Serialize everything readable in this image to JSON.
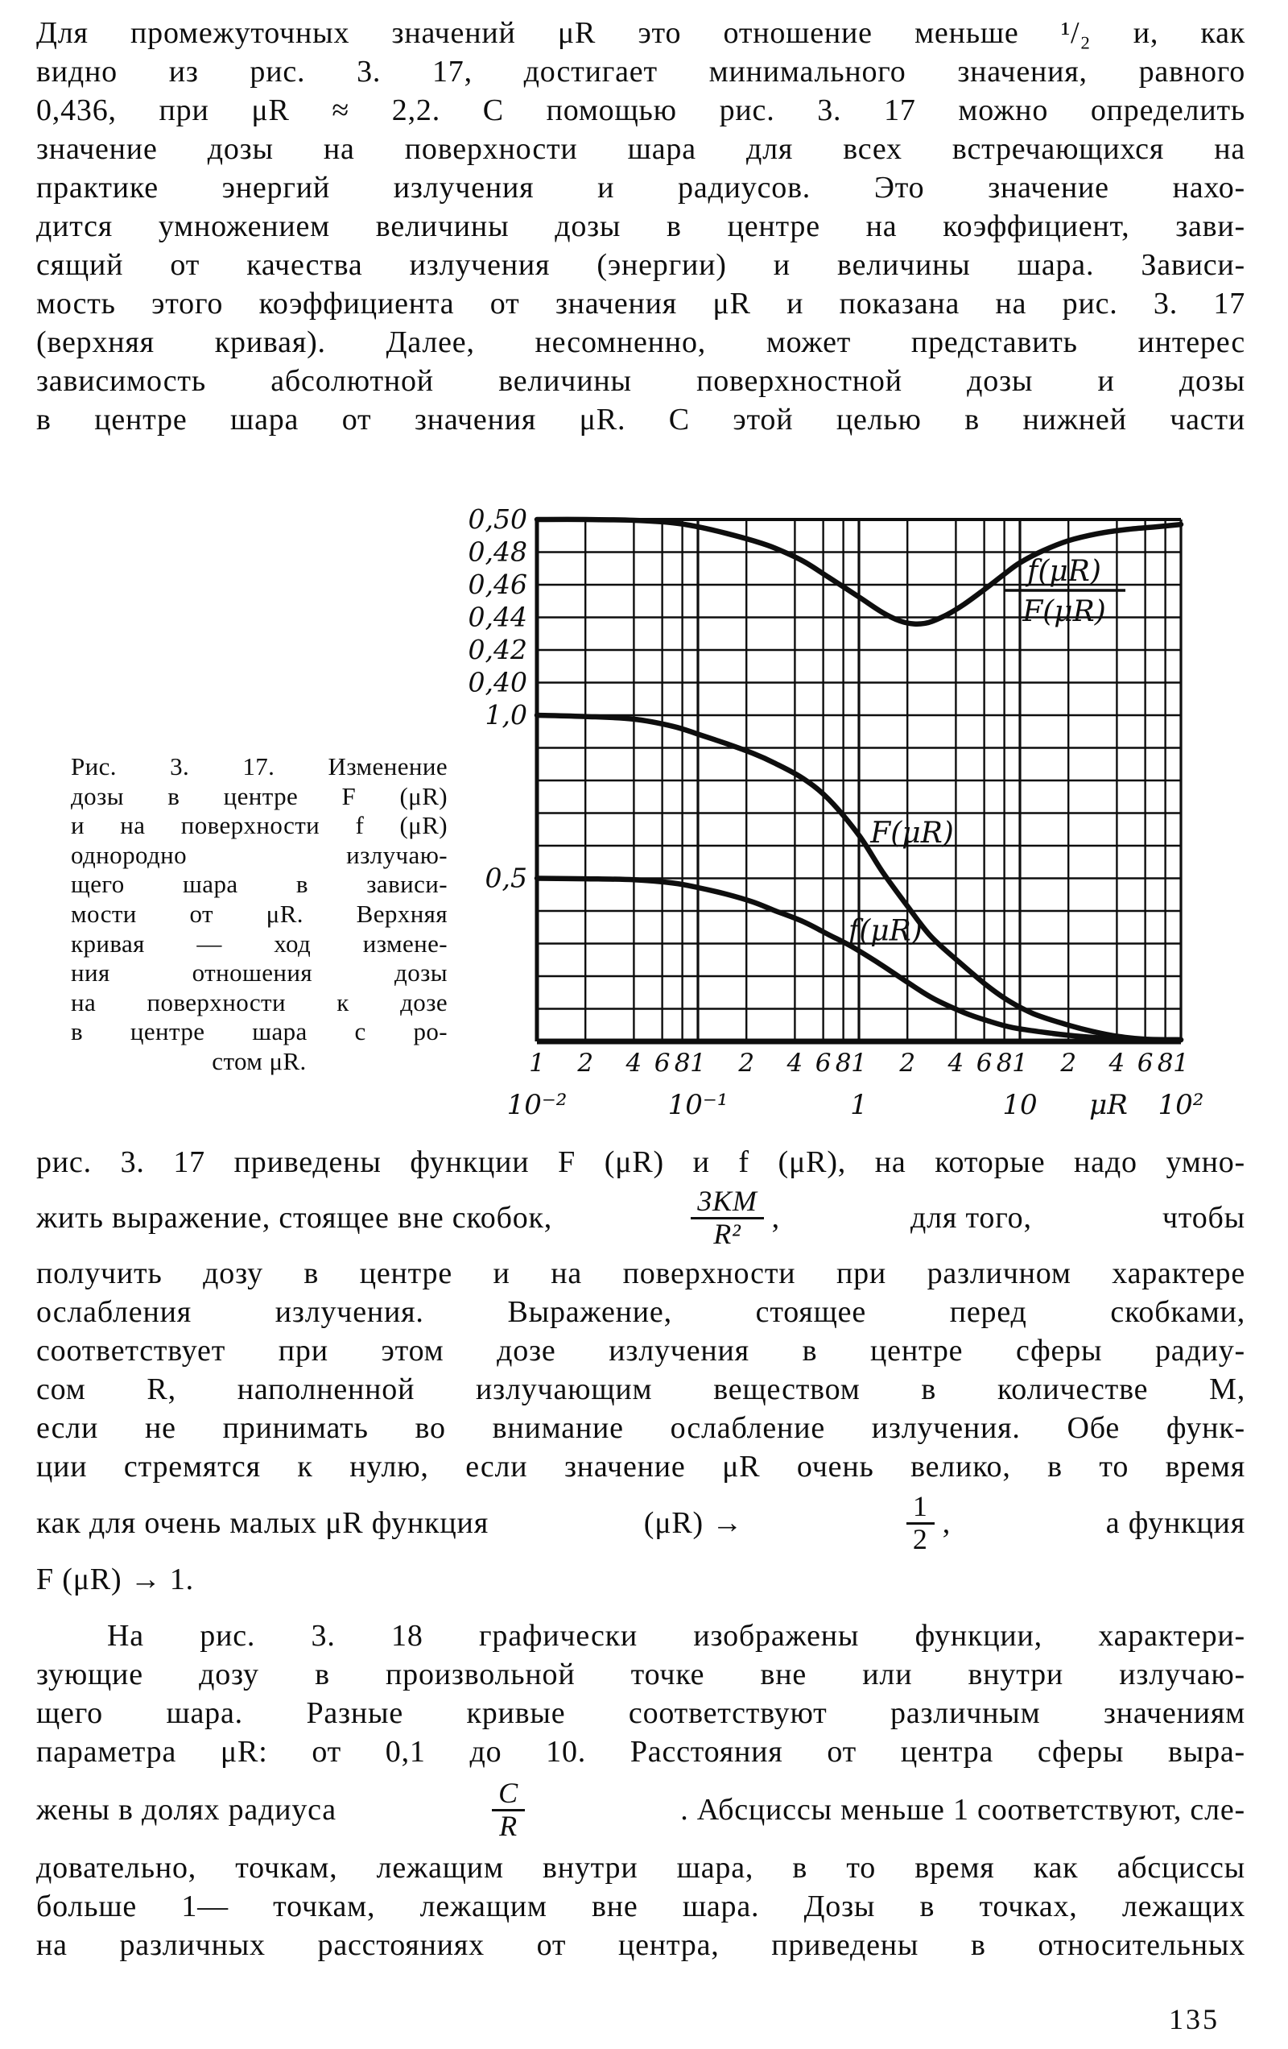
{
  "page": {
    "number": "135",
    "ink_color": "#0e0e0e",
    "paper_color": "#ffffff"
  },
  "paragraph_1": {
    "lines": [
      "Для промежуточных значений μR это отношение меньше ¹/₂ и, как",
      "видно из рис. 3. 17, достигает минимального значения, равного",
      "0,436, при μR ≈ 2,2. С помощью рис. 3. 17 можно определить",
      "значение дозы на поверхности шара для всех встречающихся на",
      "практике энергий излучения и радиусов. Это значение нахо-",
      "дится умножением величины дозы в центре на коэффициент, зави-",
      "сящий от качества излучения (энергии) и величины шара. Зависи-",
      "мость этого коэффициента от значения μR и показана на рис. 3. 17",
      "(верхняя кривая). Далее, несомненно, может представить интерес",
      "зависимость абсолютной величины поверхностной дозы и дозы",
      "в центре шара от значения μR. С этой целью в нижней части"
    ]
  },
  "figure": {
    "caption_lines": [
      "Рис. 3. 17. Изменение",
      "дозы в центре F (μR)",
      "и на поверхности f (μR)",
      "однородно излучаю-",
      "щего шара в зависи-",
      "мости от μR. Верхняя",
      "кривая — ход измене-",
      "ния отношения дозы",
      "на поверхности к дозе",
      "в центре шара с ро-",
      "стом μR."
    ]
  },
  "chart_data": {
    "type": "line",
    "title": "",
    "x_axis": {
      "scale": "log",
      "min": 0.01,
      "max": 100,
      "label": "μR",
      "tick_multipliers": [
        "1",
        "2",
        "4",
        "6",
        "8"
      ],
      "decade_labels": [
        "10⁻²",
        "10⁻¹",
        "1",
        "10",
        "10²"
      ]
    },
    "y_axis_upper": {
      "applies_to": "f(μR)/F(μR)",
      "step": 0.02,
      "ticks": [
        {
          "label": "0,50",
          "v": 0.5
        },
        {
          "label": "0,48",
          "v": 0.48
        },
        {
          "label": "0,46",
          "v": 0.46
        },
        {
          "label": "0,44",
          "v": 0.44
        },
        {
          "label": "0,42",
          "v": 0.42
        },
        {
          "label": "0,40",
          "v": 0.4
        }
      ]
    },
    "y_axis_lower": {
      "applies_to": "F(μR), f(μR)",
      "min": 0.0,
      "max": 1.0,
      "gridline_step": 0.1,
      "ticks": [
        {
          "label": "1,0",
          "v": 1.0
        },
        {
          "label": "0,5",
          "v": 0.5
        }
      ]
    },
    "grid": "full log-x grid, horizontal lines every 0.02 (upper) / 0.1 (lower)",
    "legend_position": "labels on curves",
    "series": [
      {
        "name": "f(μR)/F(μR)",
        "axis": "upper",
        "label_num": "f(μR)",
        "label_den": "F(μR)",
        "min_point": {
          "x": 2.2,
          "y": 0.436
        },
        "points": [
          [
            0.01,
            0.5
          ],
          [
            0.02,
            0.5
          ],
          [
            0.04,
            0.4995
          ],
          [
            0.07,
            0.498
          ],
          [
            0.1,
            0.4955
          ],
          [
            0.15,
            0.4915
          ],
          [
            0.22,
            0.487
          ],
          [
            0.3,
            0.4825
          ],
          [
            0.45,
            0.4745
          ],
          [
            0.65,
            0.4645
          ],
          [
            1.0,
            0.4525
          ],
          [
            1.4,
            0.443
          ],
          [
            1.8,
            0.4378
          ],
          [
            2.2,
            0.436
          ],
          [
            2.7,
            0.4368
          ],
          [
            3.5,
            0.4415
          ],
          [
            4.5,
            0.448
          ],
          [
            6,
            0.457
          ],
          [
            8,
            0.4665
          ],
          [
            10,
            0.4735
          ],
          [
            14,
            0.481
          ],
          [
            20,
            0.487
          ],
          [
            30,
            0.4912
          ],
          [
            45,
            0.4938
          ],
          [
            70,
            0.4955
          ],
          [
            100,
            0.497
          ]
        ]
      },
      {
        "name": "F(μR)",
        "axis": "lower",
        "label": "F(μR)",
        "label_at": [
          2.14,
          0.64
        ],
        "points": [
          [
            0.01,
            1.0
          ],
          [
            0.02,
            0.996
          ],
          [
            0.04,
            0.988
          ],
          [
            0.07,
            0.966
          ],
          [
            0.1,
            0.942
          ],
          [
            0.15,
            0.913
          ],
          [
            0.22,
            0.883
          ],
          [
            0.3,
            0.853
          ],
          [
            0.45,
            0.806
          ],
          [
            0.65,
            0.742
          ],
          [
            1.0,
            0.632
          ],
          [
            1.4,
            0.52
          ],
          [
            2.0,
            0.415
          ],
          [
            2.8,
            0.322
          ],
          [
            4.2,
            0.243
          ],
          [
            6.0,
            0.178
          ],
          [
            8.3,
            0.128
          ],
          [
            12,
            0.086
          ],
          [
            19,
            0.053
          ],
          [
            28,
            0.031
          ],
          [
            41,
            0.015
          ],
          [
            60,
            0.007
          ],
          [
            100,
            0.002
          ]
        ]
      },
      {
        "name": "f(μR)",
        "axis": "lower",
        "label": "f(μR)",
        "label_at": [
          1.46,
          0.34
        ],
        "points": [
          [
            0.01,
            0.5
          ],
          [
            0.02,
            0.4985
          ],
          [
            0.04,
            0.4955
          ],
          [
            0.07,
            0.4855
          ],
          [
            0.1,
            0.4715
          ],
          [
            0.15,
            0.4515
          ],
          [
            0.22,
            0.4275
          ],
          [
            0.3,
            0.401
          ],
          [
            0.45,
            0.3675
          ],
          [
            0.65,
            0.327
          ],
          [
            0.9,
            0.291
          ],
          [
            1.36,
            0.2365
          ],
          [
            2.0,
            0.1815
          ],
          [
            2.9,
            0.1315
          ],
          [
            4.5,
            0.0885
          ],
          [
            6.2,
            0.0645
          ],
          [
            9.0,
            0.0425
          ],
          [
            16,
            0.0245
          ],
          [
            25,
            0.0145
          ],
          [
            40,
            0.0082
          ],
          [
            70,
            0.0042
          ],
          [
            100,
            0.0028
          ]
        ]
      }
    ]
  },
  "paragraph_2": {
    "line1": "рис. 3. 17 приведены функции F (μR) и f (μR), на которые надо умно-",
    "line2": {
      "a": "жить выражение, стоящее вне скобок,",
      "frac_num": "3KM",
      "frac_den": "R²",
      "comma": ",",
      "b": "для того,",
      "c": "чтобы"
    },
    "line3": "получить дозу в центре и на поверхности при различном характере",
    "line4": "ослабления излучения. Выражение, стоящее перед скобками,",
    "line5": "соответствует при этом дозе излучения в центре сферы радиу-",
    "line6": "сом R, наполненной излучающим веществом в количестве M,",
    "line7": "если не принимать во внимание ослабление излучения. Обе функ-",
    "line8": "ции стремятся к нулю, если значение μR очень велико, в то время",
    "line9": {
      "a": "как для очень малых μR функция",
      "b": "(μR) →",
      "frac_num": "1",
      "frac_den": "2",
      "comma": ",",
      "c": "а функция"
    },
    "line10": "F (μR) → 1."
  },
  "paragraph_3": {
    "line1": "На рис. 3. 18 графически изображены функции, характери-",
    "line2": "зующие дозу в произвольной точке вне или внутри излучаю-",
    "line3": "щего шара. Разные кривые соответствуют различным значениям",
    "line4": "параметра μR: от 0,1 до 10. Расстояния от центра сферы выра-",
    "line5": {
      "a": "жены в долях радиуса",
      "frac_num": "C",
      "frac_den": "R",
      "b": ". Абсциссы меньше 1 соответствуют, сле-"
    },
    "line6": "довательно, точкам, лежащим внутри шара, в то время как абсциссы",
    "line7": "больше 1— точкам, лежащим вне шара. Дозы в точках, лежащих",
    "line8": "на различных расстояниях от центра, приведены в относительных"
  }
}
